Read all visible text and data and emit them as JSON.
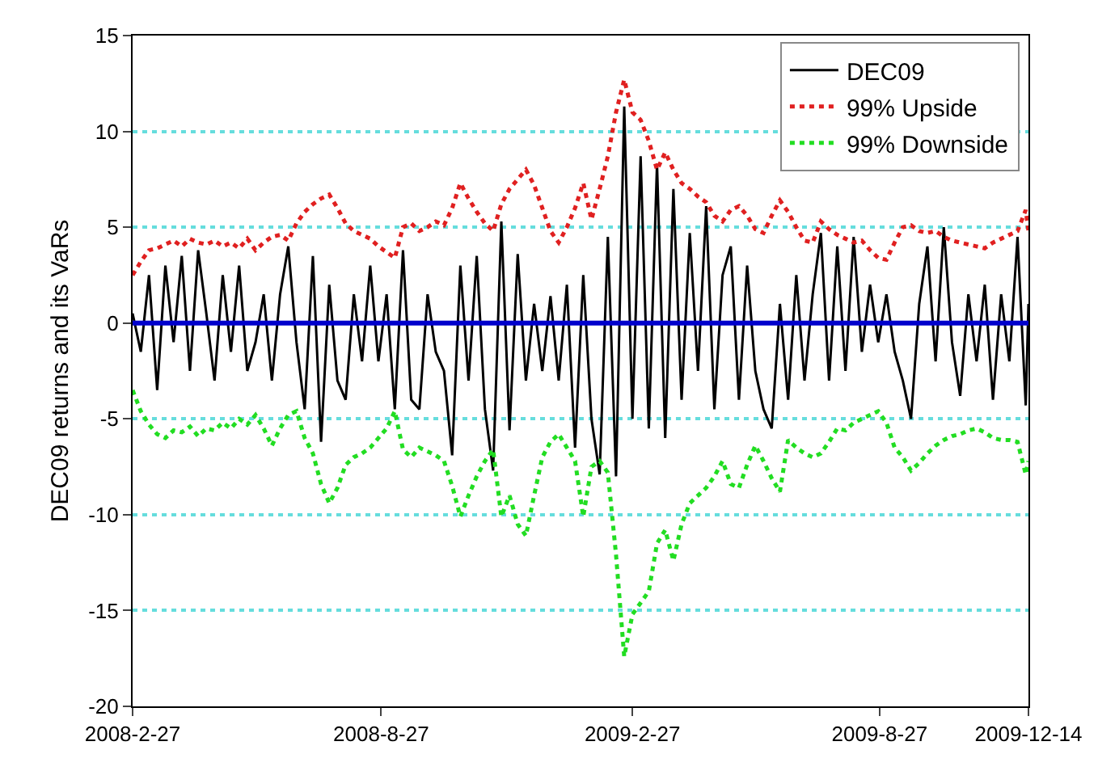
{
  "chart_data": {
    "type": "line",
    "ylabel": "DEC09 returns and its VaRs",
    "x": [
      "2008-02-27",
      "2008-03-04",
      "2008-03-10",
      "2008-03-16",
      "2008-03-22",
      "2008-03-28",
      "2008-04-03",
      "2008-04-09",
      "2008-04-15",
      "2008-04-21",
      "2008-04-27",
      "2008-05-03",
      "2008-05-09",
      "2008-05-15",
      "2008-05-21",
      "2008-05-27",
      "2008-06-02",
      "2008-06-08",
      "2008-06-14",
      "2008-06-20",
      "2008-06-26",
      "2008-07-02",
      "2008-07-08",
      "2008-07-14",
      "2008-07-20",
      "2008-07-26",
      "2008-08-01",
      "2008-08-07",
      "2008-08-13",
      "2008-08-19",
      "2008-08-25",
      "2008-08-31",
      "2008-09-06",
      "2008-09-12",
      "2008-09-18",
      "2008-09-24",
      "2008-09-30",
      "2008-10-06",
      "2008-10-12",
      "2008-10-18",
      "2008-10-24",
      "2008-10-30",
      "2008-11-05",
      "2008-11-11",
      "2008-11-17",
      "2008-11-23",
      "2008-11-29",
      "2008-12-05",
      "2008-12-11",
      "2008-12-17",
      "2008-12-23",
      "2008-12-29",
      "2009-01-04",
      "2009-01-10",
      "2009-01-16",
      "2009-01-22",
      "2009-01-28",
      "2009-02-03",
      "2009-02-09",
      "2009-02-15",
      "2009-02-21",
      "2009-02-27",
      "2009-03-05",
      "2009-03-11",
      "2009-03-17",
      "2009-03-23",
      "2009-03-29",
      "2009-04-04",
      "2009-04-10",
      "2009-04-16",
      "2009-04-22",
      "2009-04-28",
      "2009-05-04",
      "2009-05-10",
      "2009-05-16",
      "2009-05-22",
      "2009-05-28",
      "2009-06-03",
      "2009-06-09",
      "2009-06-15",
      "2009-06-21",
      "2009-06-27",
      "2009-07-03",
      "2009-07-09",
      "2009-07-15",
      "2009-07-21",
      "2009-07-27",
      "2009-08-02",
      "2009-08-08",
      "2009-08-14",
      "2009-08-20",
      "2009-08-26",
      "2009-09-01",
      "2009-09-07",
      "2009-09-13",
      "2009-09-19",
      "2009-09-25",
      "2009-10-01",
      "2009-10-07",
      "2009-10-13",
      "2009-10-19",
      "2009-10-25",
      "2009-10-31",
      "2009-11-06",
      "2009-11-12",
      "2009-11-18",
      "2009-11-24",
      "2009-11-30",
      "2009-12-06",
      "2009-12-12",
      "2009-12-14"
    ],
    "series": [
      {
        "name": "DEC09",
        "color": "#000000",
        "line_style": "solid",
        "values": [
          0.5,
          -1.5,
          2.5,
          -3.5,
          3.0,
          -1.0,
          3.5,
          -2.5,
          3.8,
          0.5,
          -3.0,
          2.5,
          -1.5,
          3.0,
          -2.5,
          -1.0,
          1.5,
          -3.0,
          1.5,
          4.0,
          -1.0,
          -4.5,
          3.5,
          -6.2,
          2.0,
          -3.0,
          -4.0,
          1.5,
          -2.0,
          3.0,
          -2.0,
          1.5,
          -4.5,
          3.8,
          -4.0,
          -4.5,
          1.5,
          -1.5,
          -2.5,
          -6.9,
          3.0,
          -3.0,
          3.5,
          -4.5,
          -7.7,
          5.3,
          -5.6,
          3.6,
          -3.0,
          1.0,
          -2.5,
          1.4,
          -3.0,
          2.0,
          -6.5,
          2.5,
          -5.0,
          -7.9,
          4.5,
          -8.0,
          11.3,
          -5.0,
          8.7,
          -5.5,
          8.3,
          -6.0,
          7.0,
          -4.0,
          4.7,
          -2.5,
          6.1,
          -4.5,
          2.5,
          4.0,
          -4.0,
          3.0,
          -2.5,
          -4.5,
          -5.5,
          1.0,
          -4.0,
          2.5,
          -3.0,
          1.5,
          4.7,
          -3.0,
          4.0,
          -2.5,
          4.5,
          -1.5,
          2.0,
          -1.0,
          1.5,
          -1.5,
          -3.0,
          -5.0,
          1.0,
          4.0,
          -2.0,
          5.0,
          -1.0,
          -3.8,
          1.5,
          -2.0,
          2.0,
          -4.0,
          1.5,
          -2.0,
          4.5,
          -4.3,
          1.0
        ]
      },
      {
        "name": "99% Upside",
        "color": "#e02020",
        "line_style": "dotted",
        "values": [
          2.5,
          3.2,
          3.8,
          3.9,
          4.1,
          4.3,
          4.0,
          4.4,
          4.2,
          4.1,
          4.3,
          4.0,
          4.2,
          3.9,
          4.4,
          3.8,
          4.2,
          4.5,
          4.6,
          4.3,
          5.2,
          5.8,
          6.2,
          6.5,
          6.7,
          6.0,
          5.2,
          4.8,
          4.6,
          4.4,
          4.0,
          3.7,
          3.4,
          5.0,
          5.2,
          4.8,
          5.0,
          5.3,
          5.1,
          6.0,
          7.3,
          6.5,
          5.8,
          5.2,
          4.8,
          6.2,
          7.0,
          7.5,
          8.0,
          7.2,
          6.0,
          4.8,
          4.2,
          5.0,
          6.0,
          7.3,
          5.4,
          7.0,
          8.7,
          11.0,
          12.7,
          11.0,
          10.6,
          9.5,
          8.0,
          8.9,
          8.0,
          7.3,
          7.0,
          6.6,
          6.3,
          5.6,
          5.3,
          5.9,
          6.1,
          5.6,
          4.9,
          4.7,
          5.6,
          6.4,
          5.8,
          5.0,
          4.3,
          4.2,
          5.3,
          4.9,
          4.6,
          4.4,
          4.2,
          4.3,
          3.8,
          3.4,
          3.3,
          4.2,
          5.0,
          5.1,
          4.8,
          4.7,
          4.8,
          4.5,
          4.3,
          4.2,
          4.1,
          4.0,
          3.9,
          4.2,
          4.4,
          4.6,
          4.8,
          5.9,
          4.8
        ]
      },
      {
        "name": "99% Downside",
        "color": "#22dd22",
        "line_style": "dotted",
        "values": [
          -3.5,
          -4.6,
          -5.3,
          -5.8,
          -6.0,
          -5.6,
          -5.7,
          -5.4,
          -5.9,
          -5.5,
          -5.6,
          -5.2,
          -5.5,
          -5.0,
          -5.3,
          -4.8,
          -5.5,
          -6.4,
          -5.5,
          -4.8,
          -4.6,
          -6.0,
          -6.8,
          -8.4,
          -9.4,
          -8.6,
          -7.4,
          -7.0,
          -6.8,
          -6.5,
          -6.0,
          -5.5,
          -4.6,
          -6.6,
          -7.0,
          -6.5,
          -6.7,
          -6.9,
          -7.2,
          -8.5,
          -10.1,
          -9.0,
          -8.0,
          -7.2,
          -6.6,
          -10.1,
          -9.0,
          -10.5,
          -11.1,
          -9.0,
          -7.0,
          -6.2,
          -5.8,
          -6.5,
          -7.2,
          -10.1,
          -7.5,
          -7.2,
          -7.8,
          -12.1,
          -17.4,
          -15.2,
          -14.6,
          -14.0,
          -11.5,
          -10.8,
          -12.4,
          -10.5,
          -9.4,
          -9.0,
          -8.6,
          -8.0,
          -7.2,
          -8.4,
          -8.6,
          -7.4,
          -6.4,
          -7.2,
          -8.1,
          -8.8,
          -6.1,
          -6.5,
          -6.8,
          -7.0,
          -6.8,
          -6.2,
          -5.5,
          -5.6,
          -5.2,
          -5.0,
          -4.8,
          -4.6,
          -5.2,
          -6.5,
          -7.0,
          -7.7,
          -7.3,
          -6.8,
          -6.4,
          -6.1,
          -5.9,
          -5.8,
          -5.6,
          -5.5,
          -5.7,
          -6.0,
          -6.1,
          -6.1,
          -6.2,
          -7.9,
          -7.2
        ]
      }
    ],
    "xlim": [
      "2008-02-27",
      "2009-12-14"
    ],
    "xticks": [
      {
        "value": "2008-02-27",
        "label": "2008-2-27"
      },
      {
        "value": "2008-08-27",
        "label": "2008-8-27"
      },
      {
        "value": "2009-02-27",
        "label": "2009-2-27"
      },
      {
        "value": "2009-08-27",
        "label": "2009-8-27"
      },
      {
        "value": "2009-12-14",
        "label": "2009-12-14"
      }
    ],
    "ylim": [
      -20,
      15
    ],
    "yticks": [
      -20,
      -15,
      -10,
      -5,
      0,
      5,
      10,
      15
    ],
    "ref_lines": [
      {
        "axis": "y",
        "value": 0,
        "color": "#0000cc",
        "line_style": "solid"
      }
    ],
    "grid": "y",
    "legend": "top right"
  }
}
